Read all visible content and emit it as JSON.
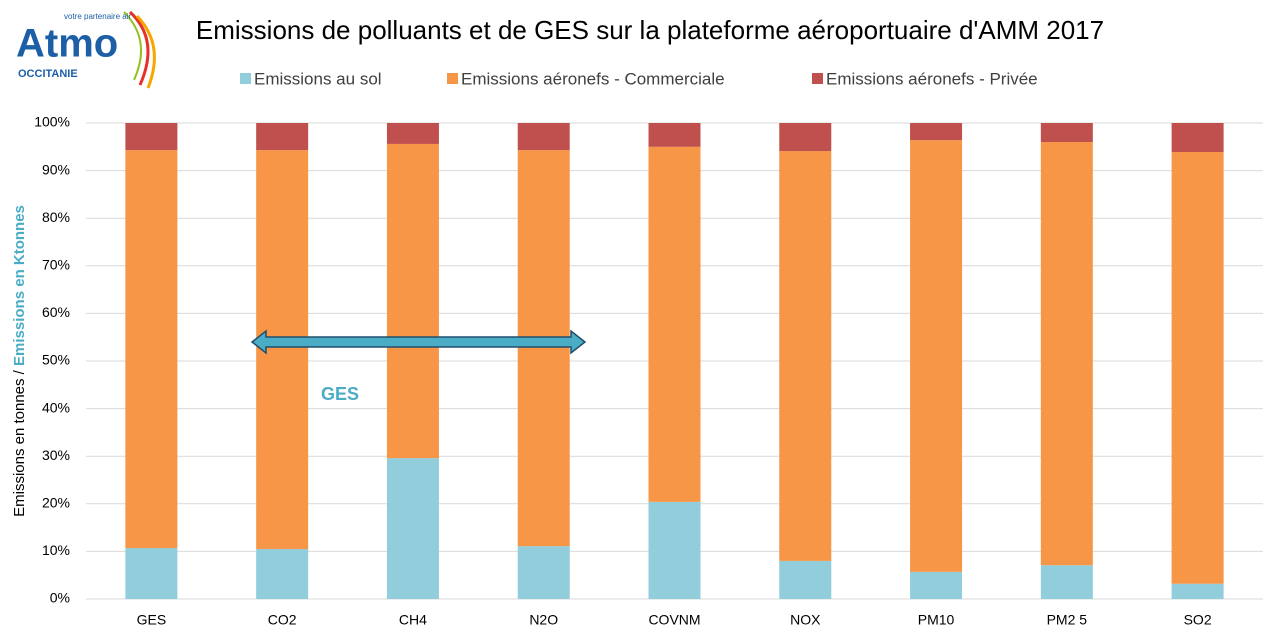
{
  "chart_data": {
    "type": "stacked_bar",
    "title": "Emissions de polluants et de GES sur la plateforme aéroportuaire d'AMM 2017",
    "logo": {
      "name": "Atmo",
      "tagline": "votre partenaire air",
      "region": "OCCITANIE"
    },
    "y_label": [
      "Emissions en tonnes / ",
      "Emissions en Ktonnes"
    ],
    "annotation": "GES",
    "categories": [
      "GES",
      "CO2",
      "CH4",
      "N2O",
      "COVNM",
      "NOX",
      "PM10",
      "PM2 5",
      "SO2"
    ],
    "series": [
      {
        "name": "Emissions au sol",
        "color": "#92cddc",
        "values": [
          10.7,
          10.5,
          29.6,
          11.1,
          20.4,
          8.0,
          5.7,
          7.1,
          3.2
        ]
      },
      {
        "name": "Emissions aéronefs - Commerciale",
        "color": "#f79646",
        "values": [
          83.6,
          83.8,
          66.0,
          83.2,
          74.6,
          86.1,
          90.7,
          88.9,
          90.7
        ]
      },
      {
        "name": "Emissions aéronefs - Privée",
        "color": "#c0504d",
        "values": [
          5.7,
          5.7,
          4.4,
          5.7,
          5.0,
          5.9,
          3.6,
          4.0,
          6.1
        ]
      }
    ],
    "ylim": [
      0,
      100
    ],
    "yticks": [
      {
        "value": 0,
        "label": "0%"
      },
      {
        "value": 10,
        "label": "10%"
      },
      {
        "value": 20,
        "label": "20%"
      },
      {
        "value": 30,
        "label": "30%"
      },
      {
        "value": 40,
        "label": "40%"
      },
      {
        "value": 50,
        "label": "50%"
      },
      {
        "value": 60,
        "label": "60%"
      },
      {
        "value": 70,
        "label": "70%"
      },
      {
        "value": 80,
        "label": "80%"
      },
      {
        "value": 90,
        "label": "90%"
      },
      {
        "value": 100,
        "label": "100%"
      }
    ],
    "grid": true,
    "legend": "top"
  }
}
